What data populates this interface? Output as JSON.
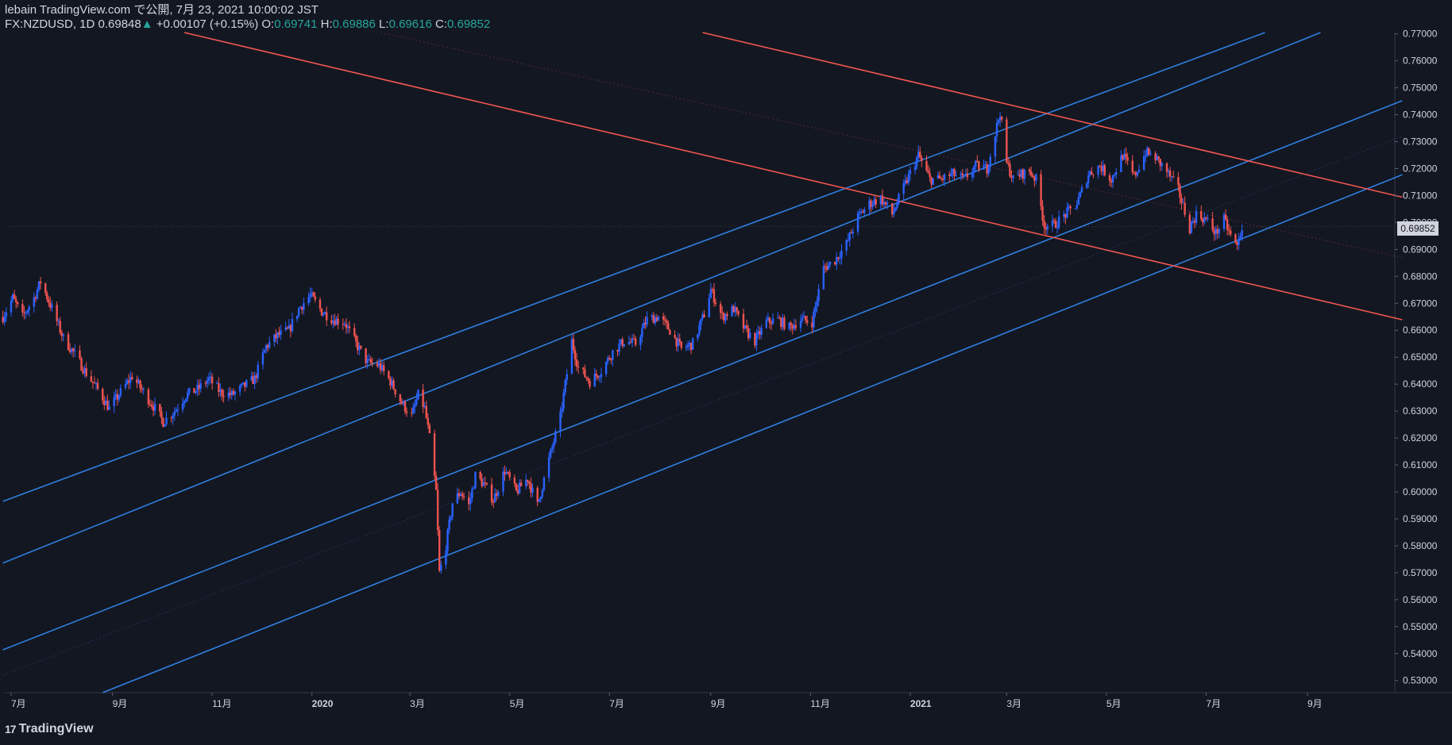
{
  "header": {
    "line1": "lebain TradingView.com で公開, 7月 23, 2021 10:00:02 JST",
    "symbol": "FX:NZDUSD, 1D",
    "last": "0.69848",
    "up_arrow": "▲",
    "change": "+0.00107 (+0.15%)",
    "o_label": "O:",
    "o_value": "0.69741",
    "h_label": "H:",
    "h_value": "0.69886",
    "l_label": "L:",
    "l_value": "0.69616",
    "c_label": "C:",
    "c_value": "0.69852"
  },
  "brand": {
    "logo": "17",
    "name": "TradingView"
  },
  "colors": {
    "background": "#131722",
    "up": "#2962ff",
    "down": "#ef5350",
    "blue_line": "#2f7fe0",
    "red_line": "#f0564f",
    "text": "#d1d4dc"
  },
  "chart_data": {
    "type": "candlestick",
    "symbol": "FX:NZDUSD",
    "interval": "1D",
    "ylim": [
      0.5255,
      0.7705
    ],
    "y_ticks": [
      "0.77000",
      "0.76000",
      "0.75000",
      "0.74000",
      "0.73000",
      "0.72000",
      "0.71000",
      "0.70000",
      "0.69000",
      "0.68000",
      "0.67000",
      "0.66000",
      "0.65000",
      "0.64000",
      "0.63000",
      "0.62000",
      "0.61000",
      "0.60000",
      "0.59000",
      "0.58000",
      "0.57000",
      "0.56000",
      "0.55000",
      "0.54000",
      "0.53000"
    ],
    "x_ticks": [
      {
        "label": "7月",
        "x": "2019-07-01"
      },
      {
        "label": "9月",
        "x": "2019-09-01"
      },
      {
        "label": "11月",
        "x": "2019-11-01"
      },
      {
        "label": "2020",
        "x": "2020-01-01"
      },
      {
        "label": "3月",
        "x": "2020-03-01"
      },
      {
        "label": "5月",
        "x": "2020-05-01"
      },
      {
        "label": "7月",
        "x": "2020-07-01"
      },
      {
        "label": "9月",
        "x": "2020-09-01"
      },
      {
        "label": "11月",
        "x": "2020-11-01"
      },
      {
        "label": "2021",
        "x": "2021-01-01"
      },
      {
        "label": "3月",
        "x": "2021-03-01"
      },
      {
        "label": "5月",
        "x": "2021-05-01"
      },
      {
        "label": "7月",
        "x": "2021-07-01"
      },
      {
        "label": "9月",
        "x": "2021-09-01"
      }
    ],
    "last_price": "0.69852",
    "price_path": [
      [
        "2019-06-26",
        0.665
      ],
      [
        "2019-07-02",
        0.672
      ],
      [
        "2019-07-08",
        0.665
      ],
      [
        "2019-07-15",
        0.672
      ],
      [
        "2019-07-19",
        0.678
      ],
      [
        "2019-07-26",
        0.668
      ],
      [
        "2019-08-02",
        0.657
      ],
      [
        "2019-08-09",
        0.651
      ],
      [
        "2019-08-16",
        0.644
      ],
      [
        "2019-08-23",
        0.638
      ],
      [
        "2019-08-30",
        0.631
      ],
      [
        "2019-09-06",
        0.637
      ],
      [
        "2019-09-13",
        0.643
      ],
      [
        "2019-09-20",
        0.637
      ],
      [
        "2019-09-27",
        0.631
      ],
      [
        "2019-10-02",
        0.626
      ],
      [
        "2019-10-09",
        0.63
      ],
      [
        "2019-10-16",
        0.636
      ],
      [
        "2019-10-23",
        0.638
      ],
      [
        "2019-10-30",
        0.642
      ],
      [
        "2019-11-06",
        0.637
      ],
      [
        "2019-11-13",
        0.636
      ],
      [
        "2019-11-20",
        0.639
      ],
      [
        "2019-11-27",
        0.642
      ],
      [
        "2019-12-04",
        0.654
      ],
      [
        "2019-12-11",
        0.658
      ],
      [
        "2019-12-18",
        0.66
      ],
      [
        "2019-12-24",
        0.668
      ],
      [
        "2019-12-31",
        0.673
      ],
      [
        "2020-01-07",
        0.667
      ],
      [
        "2020-01-14",
        0.664
      ],
      [
        "2020-01-21",
        0.663
      ],
      [
        "2020-01-28",
        0.655
      ],
      [
        "2020-02-04",
        0.648
      ],
      [
        "2020-02-11",
        0.647
      ],
      [
        "2020-02-18",
        0.641
      ],
      [
        "2020-02-25",
        0.633
      ],
      [
        "2020-03-02",
        0.628
      ],
      [
        "2020-03-06",
        0.636
      ],
      [
        "2020-03-10",
        0.631
      ],
      [
        "2020-03-13",
        0.62
      ],
      [
        "2020-03-17",
        0.6
      ],
      [
        "2020-03-19",
        0.57
      ],
      [
        "2020-03-23",
        0.58
      ],
      [
        "2020-03-27",
        0.596
      ],
      [
        "2020-04-01",
        0.6
      ],
      [
        "2020-04-06",
        0.595
      ],
      [
        "2020-04-10",
        0.606
      ],
      [
        "2020-04-15",
        0.603
      ],
      [
        "2020-04-21",
        0.597
      ],
      [
        "2020-04-28",
        0.608
      ],
      [
        "2020-05-05",
        0.6
      ],
      [
        "2020-05-12",
        0.605
      ],
      [
        "2020-05-18",
        0.595
      ],
      [
        "2020-05-25",
        0.612
      ],
      [
        "2020-06-01",
        0.628
      ],
      [
        "2020-06-08",
        0.656
      ],
      [
        "2020-06-12",
        0.646
      ],
      [
        "2020-06-19",
        0.641
      ],
      [
        "2020-06-26",
        0.645
      ],
      [
        "2020-07-03",
        0.652
      ],
      [
        "2020-07-10",
        0.656
      ],
      [
        "2020-07-17",
        0.655
      ],
      [
        "2020-07-24",
        0.664
      ],
      [
        "2020-07-31",
        0.665
      ],
      [
        "2020-08-07",
        0.66
      ],
      [
        "2020-08-14",
        0.653
      ],
      [
        "2020-08-21",
        0.655
      ],
      [
        "2020-08-28",
        0.666
      ],
      [
        "2020-09-01",
        0.675
      ],
      [
        "2020-09-08",
        0.665
      ],
      [
        "2020-09-15",
        0.668
      ],
      [
        "2020-09-22",
        0.66
      ],
      [
        "2020-09-28",
        0.656
      ],
      [
        "2020-10-05",
        0.663
      ],
      [
        "2020-10-12",
        0.664
      ],
      [
        "2020-10-19",
        0.661
      ],
      [
        "2020-10-26",
        0.664
      ],
      [
        "2020-11-02",
        0.663
      ],
      [
        "2020-11-09",
        0.683
      ],
      [
        "2020-11-16",
        0.686
      ],
      [
        "2020-11-23",
        0.692
      ],
      [
        "2020-11-30",
        0.702
      ],
      [
        "2020-12-07",
        0.707
      ],
      [
        "2020-12-14",
        0.709
      ],
      [
        "2020-12-21",
        0.703
      ],
      [
        "2020-12-28",
        0.713
      ],
      [
        "2021-01-06",
        0.725
      ],
      [
        "2021-01-13",
        0.716
      ],
      [
        "2021-01-20",
        0.716
      ],
      [
        "2021-01-27",
        0.718
      ],
      [
        "2021-02-03",
        0.716
      ],
      [
        "2021-02-10",
        0.721
      ],
      [
        "2021-02-17",
        0.72
      ],
      [
        "2021-02-25",
        0.741
      ],
      [
        "2021-03-01",
        0.722
      ],
      [
        "2021-03-05",
        0.716
      ],
      [
        "2021-03-10",
        0.718
      ],
      [
        "2021-03-15",
        0.719
      ],
      [
        "2021-03-19",
        0.716
      ],
      [
        "2021-03-24",
        0.699
      ],
      [
        "2021-03-30",
        0.699
      ],
      [
        "2021-04-06",
        0.703
      ],
      [
        "2021-04-13",
        0.707
      ],
      [
        "2021-04-20",
        0.718
      ],
      [
        "2021-04-27",
        0.721
      ],
      [
        "2021-05-04",
        0.716
      ],
      [
        "2021-05-11",
        0.725
      ],
      [
        "2021-05-18",
        0.717
      ],
      [
        "2021-05-25",
        0.726
      ],
      [
        "2021-05-31",
        0.724
      ],
      [
        "2021-06-07",
        0.719
      ],
      [
        "2021-06-14",
        0.712
      ],
      [
        "2021-06-21",
        0.698
      ],
      [
        "2021-06-25",
        0.703
      ],
      [
        "2021-07-01",
        0.701
      ],
      [
        "2021-07-07",
        0.696
      ],
      [
        "2021-07-12",
        0.701
      ],
      [
        "2021-07-16",
        0.695
      ],
      [
        "2021-07-20",
        0.691
      ],
      [
        "2021-07-23",
        0.6985
      ]
    ],
    "trendlines": [
      {
        "color": "blue",
        "from": [
          "2019-06-26",
          0.5965
        ],
        "to": [
          "2021-08-06",
          0.7705
        ]
      },
      {
        "color": "blue",
        "from": [
          "2019-06-26",
          0.5736
        ],
        "to": [
          "2021-09-09",
          0.7705
        ]
      },
      {
        "color": "blue",
        "from": [
          "2019-06-26",
          0.5414
        ],
        "to": [
          "2021-10-29",
          0.7452
        ]
      },
      {
        "color": "blue",
        "from": [
          "2019-08-26",
          0.5255
        ],
        "to": [
          "2021-10-29",
          0.7177
        ]
      },
      {
        "color": "red",
        "from": [
          "2019-10-15",
          0.7705
        ],
        "to": [
          "2021-10-29",
          0.6639
        ]
      },
      {
        "color": "red",
        "from": [
          "2020-08-27",
          0.7705
        ],
        "to": [
          "2021-10-29",
          0.7094
        ]
      }
    ]
  }
}
